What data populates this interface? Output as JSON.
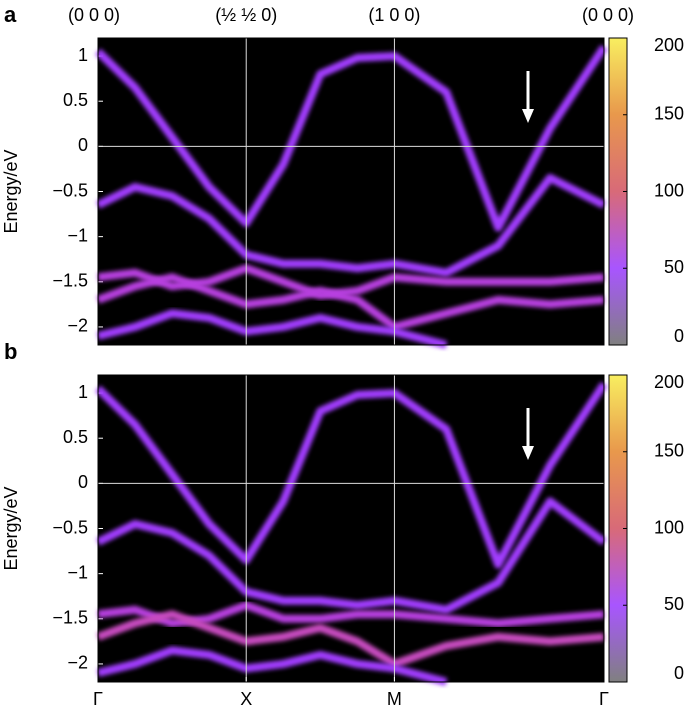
{
  "chart_data": [
    {
      "type": "spectral",
      "panel_label": "a",
      "ylabel": "Energy/eV",
      "xlim": [
        0,
        3.414
      ],
      "ylim": [
        -2.2,
        1.2
      ],
      "top_xticks": [
        {
          "value": 0,
          "label": "(0 0 0)"
        },
        {
          "value": 1,
          "label": "(½ ½ 0)"
        },
        {
          "value": 2,
          "label": "(1 0 0)"
        },
        {
          "value": 3.414,
          "label": "(0 0 0)"
        }
      ],
      "yticks": [
        {
          "value": 1,
          "label": "1"
        },
        {
          "value": 0.5,
          "label": "0.5"
        },
        {
          "value": 0,
          "label": "0"
        },
        {
          "value": -0.5,
          "label": "−0.5"
        },
        {
          "value": -1,
          "label": "−1"
        },
        {
          "value": -1.5,
          "label": "−1.5"
        },
        {
          "value": -2,
          "label": "−2"
        }
      ],
      "grid": true,
      "x": [
        0,
        0.25,
        0.5,
        0.75,
        1,
        1.25,
        1.5,
        1.75,
        2,
        2.35,
        2.7,
        3.05,
        3.414
      ],
      "series": [
        {
          "color": "#a23cff",
          "values": [
            1.05,
            0.65,
            0.1,
            -0.45,
            -0.85,
            -0.2,
            0.8,
            0.98,
            1.0,
            0.6,
            -0.9,
            0.2,
            1.1
          ]
        },
        {
          "color": "#a23cff",
          "values": [
            -0.65,
            -0.45,
            -0.55,
            -0.8,
            -1.2,
            -1.3,
            -1.3,
            -1.35,
            -1.3,
            -1.4,
            -1.1,
            -0.35,
            -0.65
          ]
        },
        {
          "color": "#b840e0",
          "values": [
            -1.45,
            -1.4,
            -1.55,
            -1.5,
            -1.35,
            -1.5,
            -1.65,
            -1.6,
            -1.45,
            -1.5,
            -1.5,
            -1.5,
            -1.45
          ]
        },
        {
          "color": "#b840e0",
          "values": [
            -1.7,
            -1.55,
            -1.45,
            -1.6,
            -1.75,
            -1.7,
            -1.6,
            -1.7,
            -2.0,
            -1.85,
            -1.7,
            -1.75,
            -1.7
          ]
        },
        {
          "color": "#a23cff",
          "values": [
            -2.1,
            -2.0,
            -1.85,
            -1.9,
            -2.05,
            -2.0,
            -1.9,
            -2.0,
            -2.05,
            -2.2,
            null,
            null,
            null
          ]
        }
      ],
      "colorbar": {
        "lim": [
          0,
          200
        ],
        "ticks": [
          0,
          50,
          100,
          150,
          200
        ],
        "colors": [
          "#808080",
          "#a855ff",
          "#d86a78",
          "#e8984c",
          "#f8ee60"
        ]
      }
    },
    {
      "type": "spectral",
      "panel_label": "b",
      "ylabel": "Energy/eV",
      "xlim": [
        0,
        3.414
      ],
      "ylim": [
        -2.2,
        1.2
      ],
      "xticks": [
        {
          "value": 0,
          "label": "Γ"
        },
        {
          "value": 1,
          "label": "X"
        },
        {
          "value": 2,
          "label": "M"
        },
        {
          "value": 3.414,
          "label": "Γ"
        }
      ],
      "yticks": [
        {
          "value": 1,
          "label": "1"
        },
        {
          "value": 0.5,
          "label": "0.5"
        },
        {
          "value": 0,
          "label": "0"
        },
        {
          "value": -0.5,
          "label": "−0.5"
        },
        {
          "value": -1,
          "label": "−1"
        },
        {
          "value": -1.5,
          "label": "−1.5"
        },
        {
          "value": -2,
          "label": "−2"
        }
      ],
      "grid": true,
      "x": [
        0,
        0.25,
        0.5,
        0.75,
        1,
        1.25,
        1.5,
        1.75,
        2,
        2.35,
        2.7,
        3.05,
        3.414
      ],
      "series": [
        {
          "color": "#a23cff",
          "values": [
            1.05,
            0.65,
            0.1,
            -0.45,
            -0.85,
            -0.2,
            0.8,
            0.98,
            1.0,
            0.6,
            -0.9,
            0.2,
            1.1
          ]
        },
        {
          "color": "#a23cff",
          "values": [
            -0.65,
            -0.45,
            -0.55,
            -0.8,
            -1.2,
            -1.3,
            -1.3,
            -1.35,
            -1.3,
            -1.4,
            -1.1,
            -0.2,
            -0.65
          ]
        },
        {
          "color": "#b840e0",
          "values": [
            -1.45,
            -1.4,
            -1.55,
            -1.5,
            -1.35,
            -1.5,
            -1.5,
            -1.45,
            -1.45,
            -1.5,
            -1.55,
            -1.5,
            -1.45
          ]
        },
        {
          "color": "#c84cc0",
          "values": [
            -1.7,
            -1.55,
            -1.45,
            -1.6,
            -1.75,
            -1.7,
            -1.6,
            -1.75,
            -2.0,
            -1.8,
            -1.7,
            -1.75,
            -1.7
          ]
        },
        {
          "color": "#a23cff",
          "values": [
            -2.1,
            -2.0,
            -1.85,
            -1.9,
            -2.05,
            -2.0,
            -1.9,
            -2.0,
            -2.05,
            -2.2,
            null,
            null,
            null
          ]
        }
      ],
      "colorbar": {
        "lim": [
          0,
          200
        ],
        "ticks": [
          0,
          50,
          100,
          150,
          200
        ],
        "colors": [
          "#808080",
          "#a855ff",
          "#d86a78",
          "#e8984c",
          "#f8ee60"
        ]
      }
    }
  ]
}
